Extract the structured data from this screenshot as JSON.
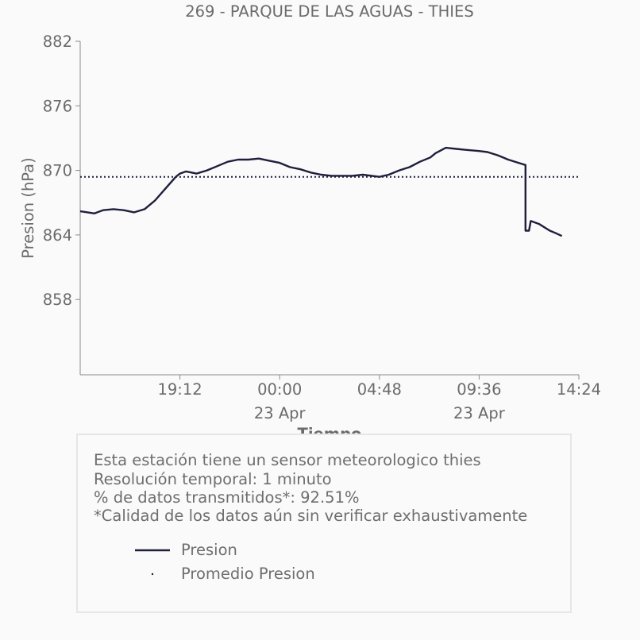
{
  "chart_data": {
    "type": "line",
    "title": "269 - PARQUE DE LAS AGUAS - THIES",
    "xlabel": "Tiempo",
    "ylabel": "Presion (hPa)",
    "x_start": "2024-04-22 14:24",
    "x_end": "2024-04-23 14:24",
    "ylim": [
      851,
      882
    ],
    "yticks": [
      "882",
      "876",
      "870",
      "864",
      "858"
    ],
    "xticks": [
      {
        "label": "19:12",
        "sub": "",
        "time": "2024-04-22 19:12"
      },
      {
        "label": "00:00",
        "sub": "23 Apr",
        "time": "2024-04-23 00:00"
      },
      {
        "label": "04:48",
        "sub": "",
        "time": "2024-04-23 04:48"
      },
      {
        "label": "09:36",
        "sub": "23 Apr",
        "time": "2024-04-23 09:36"
      },
      {
        "label": "14:24",
        "sub": "",
        "time": "2024-04-23 14:24"
      }
    ],
    "series": [
      {
        "name": "Presion",
        "color": "#1f1f3d",
        "points": [
          [
            "2024-04-22 14:24",
            866.2
          ],
          [
            "2024-04-22 14:45",
            866.1
          ],
          [
            "2024-04-22 15:05",
            866.0
          ],
          [
            "2024-04-22 15:30",
            866.3
          ],
          [
            "2024-04-22 16:00",
            866.4
          ],
          [
            "2024-04-22 16:30",
            866.3
          ],
          [
            "2024-04-22 17:00",
            866.1
          ],
          [
            "2024-04-22 17:30",
            866.4
          ],
          [
            "2024-04-22 18:00",
            867.2
          ],
          [
            "2024-04-22 18:30",
            868.3
          ],
          [
            "2024-04-22 19:00",
            869.4
          ],
          [
            "2024-04-22 19:12",
            869.7
          ],
          [
            "2024-04-22 19:30",
            869.9
          ],
          [
            "2024-04-22 20:00",
            869.7
          ],
          [
            "2024-04-22 20:30",
            870.0
          ],
          [
            "2024-04-22 21:00",
            870.4
          ],
          [
            "2024-04-22 21:30",
            870.8
          ],
          [
            "2024-04-22 22:00",
            871.0
          ],
          [
            "2024-04-22 22:30",
            871.0
          ],
          [
            "2024-04-22 23:00",
            871.1
          ],
          [
            "2024-04-22 23:30",
            870.9
          ],
          [
            "2024-04-23 00:00",
            870.7
          ],
          [
            "2024-04-23 00:30",
            870.3
          ],
          [
            "2024-04-23 01:00",
            870.1
          ],
          [
            "2024-04-23 01:30",
            869.8
          ],
          [
            "2024-04-23 02:00",
            869.6
          ],
          [
            "2024-04-23 02:30",
            869.5
          ],
          [
            "2024-04-23 03:00",
            869.5
          ],
          [
            "2024-04-23 03:30",
            869.5
          ],
          [
            "2024-04-23 04:00",
            869.6
          ],
          [
            "2024-04-23 04:48",
            869.4
          ],
          [
            "2024-04-23 05:15",
            869.6
          ],
          [
            "2024-04-23 05:45",
            870.0
          ],
          [
            "2024-04-23 06:15",
            870.3
          ],
          [
            "2024-04-23 06:45",
            870.8
          ],
          [
            "2024-04-23 07:15",
            871.2
          ],
          [
            "2024-04-23 07:30",
            871.6
          ],
          [
            "2024-04-23 08:00",
            872.1
          ],
          [
            "2024-04-23 08:30",
            872.0
          ],
          [
            "2024-04-23 09:00",
            871.9
          ],
          [
            "2024-04-23 09:36",
            871.8
          ],
          [
            "2024-04-23 10:00",
            871.7
          ],
          [
            "2024-04-23 10:30",
            871.4
          ],
          [
            "2024-04-23 11:00",
            871.0
          ],
          [
            "2024-04-23 11:30",
            870.7
          ],
          [
            "2024-04-23 11:50",
            870.5
          ],
          [
            "2024-04-23 12:00",
            864.4
          ],
          [
            "2024-04-23 12:05",
            865.3
          ],
          [
            "2024-04-23 12:30",
            865.0
          ],
          [
            "2024-04-23 13:00",
            864.4
          ],
          [
            "2024-04-23 13:15",
            864.2
          ],
          [
            "2024-04-23 13:35",
            863.9
          ]
        ]
      }
    ],
    "mean": {
      "name": "Promedio Presion",
      "value": 869.4,
      "color": "#1f1f3d"
    }
  },
  "info": {
    "line1": "Esta estación tiene un sensor meteorologico thies",
    "line2": "Resolución temporal: 1 minuto",
    "line3": "% de datos transmitidos*: 92.51%",
    "line4": "*Calidad de los datos aún sin verificar exhaustivamente"
  },
  "legend": {
    "presion": "Presion",
    "promedio": "Promedio Presion"
  }
}
